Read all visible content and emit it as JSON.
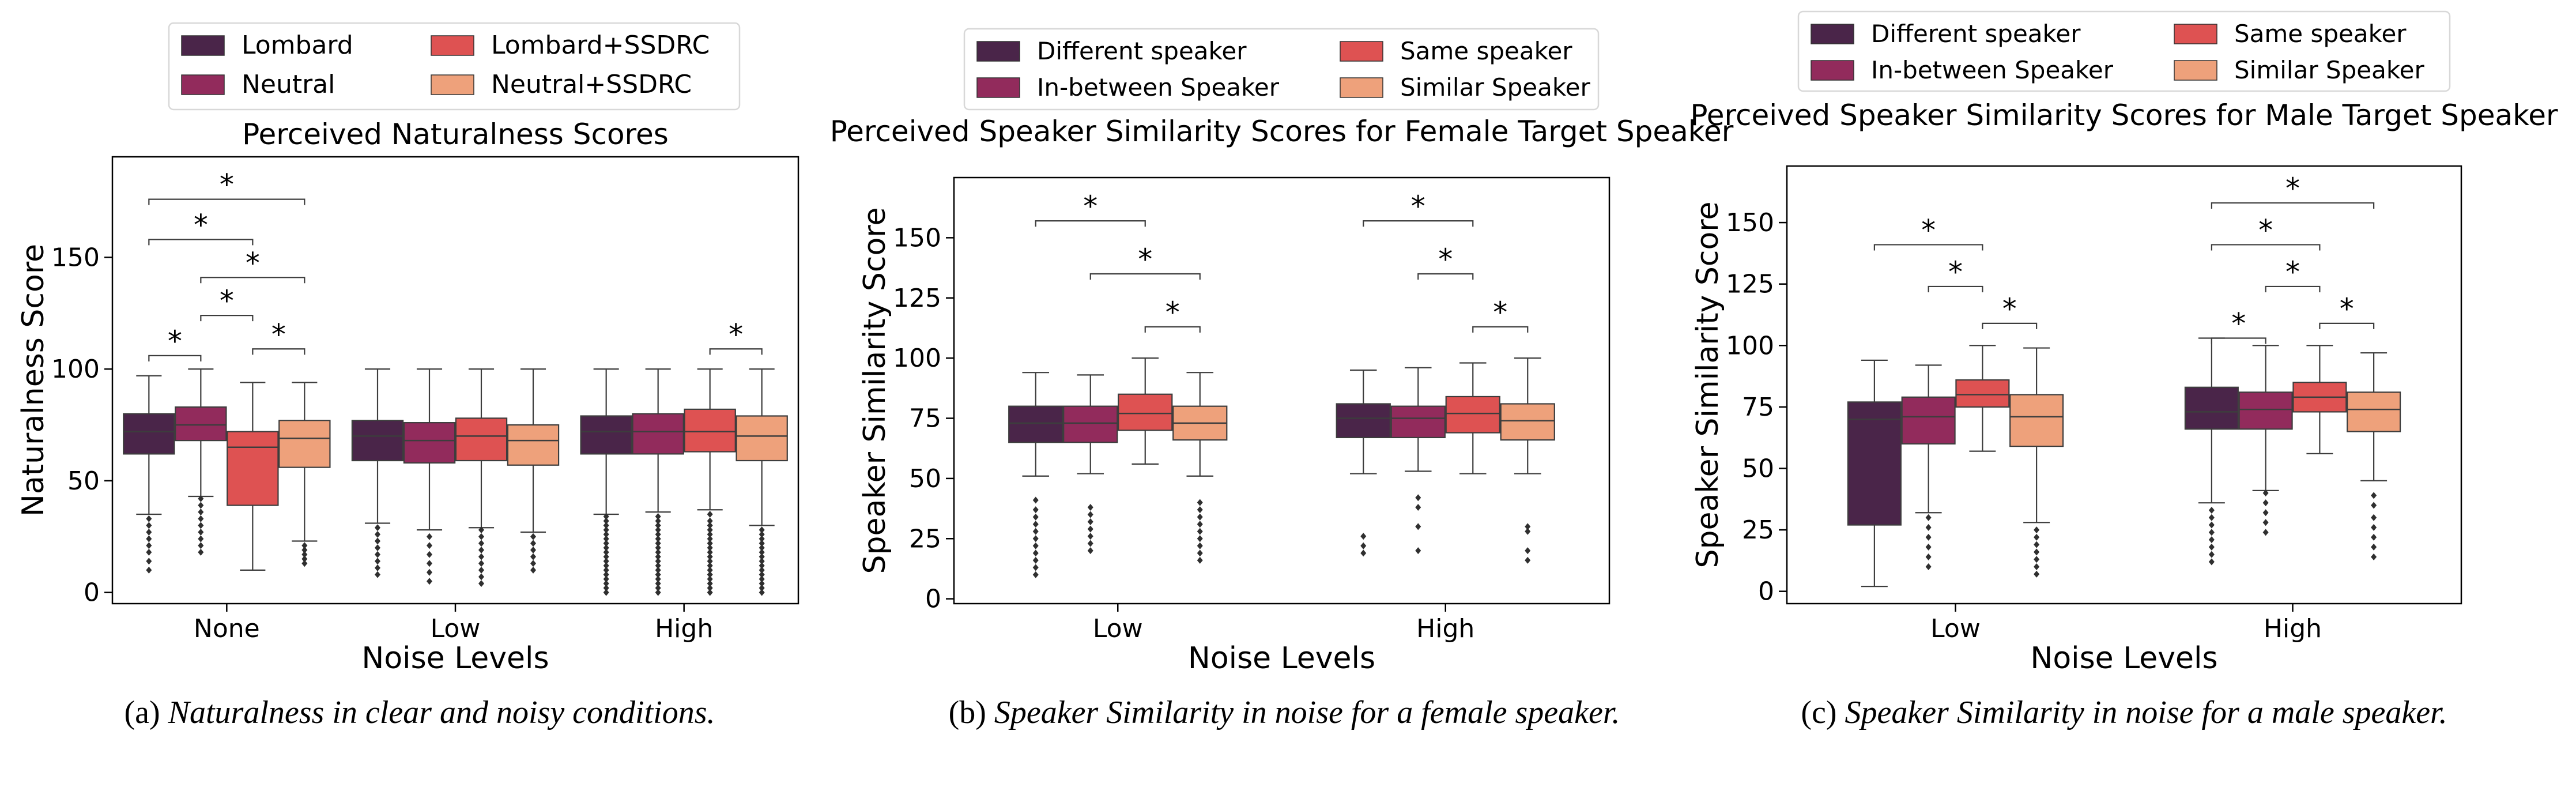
{
  "chart_data": [
    {
      "type": "box",
      "title": "Perceived Naturalness Scores",
      "xlabel": "Noise Levels",
      "ylabel": "Naturalness Score",
      "ylim": [
        -5,
        195
      ],
      "yticks": [
        0,
        50,
        100,
        150
      ],
      "categories": [
        "None",
        "Low",
        "High"
      ],
      "legend": {
        "placement": "top",
        "entries": [
          "Lombard",
          "Neutral",
          "Lombard+SSDRC",
          "Neutral+SSDRC"
        ]
      },
      "colors": [
        "#4a2549",
        "#922b5c",
        "#de5252",
        "#eea17b"
      ],
      "series": [
        {
          "name": "Lombard",
          "boxes": [
            {
              "whislo": 35,
              "q1": 62,
              "med": 72,
              "q3": 80,
              "whishi": 97,
              "fliers": [
                10,
                14,
                18,
                21,
                24,
                27,
                30,
                33
              ]
            },
            {
              "whislo": 31,
              "q1": 59,
              "med": 70,
              "q3": 77,
              "whishi": 100,
              "fliers": [
                8,
                11,
                14,
                17,
                20,
                23,
                26,
                29
              ]
            },
            {
              "whislo": 35,
              "q1": 62,
              "med": 72,
              "q3": 79,
              "whishi": 100,
              "fliers": [
                0,
                2,
                4,
                6,
                8,
                10,
                12,
                14,
                16,
                18,
                20,
                22,
                24,
                26,
                28,
                30,
                32,
                34
              ]
            }
          ]
        },
        {
          "name": "Neutral",
          "boxes": [
            {
              "whislo": 43,
              "q1": 68,
              "med": 75,
              "q3": 83,
              "whishi": 100,
              "fliers": [
                18,
                21,
                24,
                27,
                30,
                33,
                36,
                39,
                42
              ]
            },
            {
              "whislo": 28,
              "q1": 58,
              "med": 68,
              "q3": 76,
              "whishi": 100,
              "fliers": [
                5,
                9,
                13,
                17,
                21,
                25
              ]
            },
            {
              "whislo": 36,
              "q1": 62,
              "med": 72,
              "q3": 80,
              "whishi": 100,
              "fliers": [
                0,
                2,
                4,
                6,
                8,
                10,
                12,
                14,
                16,
                18,
                20,
                22,
                24,
                26,
                28,
                30,
                32,
                34
              ]
            }
          ]
        },
        {
          "name": "Lombard+SSDRC",
          "boxes": [
            {
              "whislo": 10,
              "q1": 39,
              "med": 65,
              "q3": 72,
              "whishi": 94,
              "fliers": []
            },
            {
              "whislo": 29,
              "q1": 59,
              "med": 70,
              "q3": 78,
              "whishi": 100,
              "fliers": [
                4,
                7,
                10,
                13,
                16,
                19,
                22,
                25,
                28
              ]
            },
            {
              "whislo": 37,
              "q1": 63,
              "med": 72,
              "q3": 82,
              "whishi": 100,
              "fliers": [
                0,
                2,
                4,
                6,
                8,
                10,
                12,
                14,
                16,
                18,
                20,
                22,
                24,
                26,
                28,
                30,
                32,
                35
              ]
            }
          ]
        },
        {
          "name": "Neutral+SSDRC",
          "boxes": [
            {
              "whislo": 23,
              "q1": 56,
              "med": 69,
              "q3": 77,
              "whishi": 94,
              "fliers": [
                13,
                15,
                17,
                19,
                21
              ]
            },
            {
              "whislo": 27,
              "q1": 57,
              "med": 68,
              "q3": 75,
              "whishi": 100,
              "fliers": [
                10,
                13,
                16,
                19,
                22,
                25
              ]
            },
            {
              "whislo": 30,
              "q1": 59,
              "med": 70,
              "q3": 79,
              "whishi": 100,
              "fliers": [
                0,
                2,
                4,
                6,
                8,
                10,
                12,
                14,
                16,
                18,
                20,
                22,
                24,
                26,
                28
              ]
            }
          ]
        }
      ],
      "significance": [
        {
          "category": 0,
          "from": 0,
          "to": 1,
          "y": 106,
          "label": "*"
        },
        {
          "category": 0,
          "from": 1,
          "to": 2,
          "y": 124,
          "label": "*"
        },
        {
          "category": 0,
          "from": 2,
          "to": 3,
          "y": 109,
          "label": "*"
        },
        {
          "category": 0,
          "from": 1,
          "to": 3,
          "y": 141,
          "label": "*"
        },
        {
          "category": 0,
          "from": 0,
          "to": 2,
          "y": 158,
          "label": "*"
        },
        {
          "category": 0,
          "from": 0,
          "to": 3,
          "y": 176,
          "label": "*"
        },
        {
          "category": 2,
          "from": 2,
          "to": 3,
          "y": 109,
          "label": "*"
        }
      ]
    },
    {
      "type": "box",
      "title": "Perceived Speaker Similarity Scores for Female Target Speaker",
      "xlabel": "Noise Levels",
      "ylabel": "Speaker Similarity Score",
      "ylim": [
        -2,
        175
      ],
      "yticks": [
        0,
        25,
        50,
        75,
        100,
        125,
        150
      ],
      "categories": [
        "Low",
        "High"
      ],
      "legend": {
        "placement": "top",
        "entries": [
          "Different speaker",
          "In-between Speaker",
          "Same speaker",
          "Similar Speaker"
        ]
      },
      "colors": [
        "#4a2549",
        "#922b5c",
        "#de5252",
        "#eea17b"
      ],
      "series": [
        {
          "name": "Different speaker",
          "boxes": [
            {
              "whislo": 51,
              "q1": 65,
              "med": 73,
              "q3": 80,
              "whishi": 94,
              "fliers": [
                10,
                13,
                16,
                19,
                22,
                25,
                28,
                31,
                34,
                37,
                41
              ]
            },
            {
              "whislo": 52,
              "q1": 67,
              "med": 75,
              "q3": 81,
              "whishi": 95,
              "fliers": [
                19,
                22,
                26
              ]
            }
          ]
        },
        {
          "name": "In-between Speaker",
          "boxes": [
            {
              "whislo": 52,
              "q1": 65,
              "med": 73,
              "q3": 80,
              "whishi": 93,
              "fliers": [
                20,
                23,
                26,
                29,
                32,
                35,
                38
              ]
            },
            {
              "whislo": 53,
              "q1": 67,
              "med": 75,
              "q3": 80,
              "whishi": 96,
              "fliers": [
                20,
                30,
                38,
                42
              ]
            }
          ]
        },
        {
          "name": "Same speaker",
          "boxes": [
            {
              "whislo": 56,
              "q1": 70,
              "med": 77,
              "q3": 85,
              "whishi": 100,
              "fliers": []
            },
            {
              "whislo": 52,
              "q1": 69,
              "med": 77,
              "q3": 84,
              "whishi": 98,
              "fliers": []
            }
          ]
        },
        {
          "name": "Similar Speaker",
          "boxes": [
            {
              "whislo": 51,
              "q1": 66,
              "med": 73,
              "q3": 80,
              "whishi": 94,
              "fliers": [
                16,
                19,
                22,
                25,
                28,
                31,
                34,
                37,
                40
              ]
            },
            {
              "whislo": 52,
              "q1": 66,
              "med": 74,
              "q3": 81,
              "whishi": 100,
              "fliers": [
                16,
                20,
                28,
                30
              ]
            }
          ]
        }
      ],
      "significance": [
        {
          "category": 0,
          "from": 2,
          "to": 3,
          "y": 113,
          "label": "*"
        },
        {
          "category": 0,
          "from": 1,
          "to": 3,
          "y": 135,
          "label": "*"
        },
        {
          "category": 0,
          "from": 0,
          "to": 2,
          "y": 157,
          "label": "*"
        },
        {
          "category": 1,
          "from": 2,
          "to": 3,
          "y": 113,
          "label": "*"
        },
        {
          "category": 1,
          "from": 1,
          "to": 2,
          "y": 135,
          "label": "*"
        },
        {
          "category": 1,
          "from": 0,
          "to": 2,
          "y": 157,
          "label": "*"
        }
      ]
    },
    {
      "type": "box",
      "title": "Perceived Speaker Similarity Scores for Male Target Speaker",
      "xlabel": "Noise Levels",
      "ylabel": "Speaker Similarity Score",
      "ylim": [
        -5,
        173
      ],
      "yticks": [
        0,
        25,
        50,
        75,
        100,
        125,
        150
      ],
      "categories": [
        "Low",
        "High"
      ],
      "legend": {
        "placement": "top",
        "entries": [
          "Different speaker",
          "In-between Speaker",
          "Same speaker",
          "Similar Speaker"
        ]
      },
      "colors": [
        "#4a2549",
        "#922b5c",
        "#de5252",
        "#eea17b"
      ],
      "series": [
        {
          "name": "Different speaker",
          "boxes": [
            {
              "whislo": 2,
              "q1": 27,
              "med": 70,
              "q3": 77,
              "whishi": 94,
              "fliers": []
            },
            {
              "whislo": 36,
              "q1": 66,
              "med": 73,
              "q3": 83,
              "whishi": 103,
              "fliers": [
                12,
                15,
                18,
                21,
                24,
                27,
                30,
                33
              ]
            }
          ]
        },
        {
          "name": "In-between Speaker",
          "boxes": [
            {
              "whislo": 32,
              "q1": 60,
              "med": 71,
              "q3": 79,
              "whishi": 92,
              "fliers": [
                10,
                14,
                18,
                22,
                26,
                30
              ]
            },
            {
              "whislo": 41,
              "q1": 66,
              "med": 74,
              "q3": 81,
              "whishi": 100,
              "fliers": [
                24,
                28,
                32,
                36,
                40
              ]
            }
          ]
        },
        {
          "name": "Same speaker",
          "boxes": [
            {
              "whislo": 57,
              "q1": 75,
              "med": 80,
              "q3": 86,
              "whishi": 100,
              "fliers": []
            },
            {
              "whislo": 56,
              "q1": 73,
              "med": 79,
              "q3": 85,
              "whishi": 100,
              "fliers": []
            }
          ]
        },
        {
          "name": "Similar Speaker",
          "boxes": [
            {
              "whislo": 28,
              "q1": 59,
              "med": 71,
              "q3": 80,
              "whishi": 99,
              "fliers": [
                7,
                10,
                13,
                16,
                19,
                22,
                25
              ]
            },
            {
              "whislo": 45,
              "q1": 65,
              "med": 74,
              "q3": 81,
              "whishi": 97,
              "fliers": [
                14,
                18,
                22,
                26,
                30,
                35,
                39
              ]
            }
          ]
        }
      ],
      "significance": [
        {
          "category": 0,
          "from": 2,
          "to": 3,
          "y": 109,
          "label": "*"
        },
        {
          "category": 0,
          "from": 1,
          "to": 2,
          "y": 124,
          "label": "*"
        },
        {
          "category": 0,
          "from": 0,
          "to": 2,
          "y": 141,
          "label": "*"
        },
        {
          "category": 1,
          "from": 0,
          "to": 1,
          "y": 103,
          "label": "*"
        },
        {
          "category": 1,
          "from": 2,
          "to": 3,
          "y": 109,
          "label": "*"
        },
        {
          "category": 1,
          "from": 1,
          "to": 2,
          "y": 124,
          "label": "*"
        },
        {
          "category": 1,
          "from": 0,
          "to": 2,
          "y": 141,
          "label": "*"
        },
        {
          "category": 1,
          "from": 0,
          "to": 3,
          "y": 158,
          "label": "*"
        }
      ]
    }
  ],
  "captions": [
    {
      "prefix": "(a) ",
      "text": "Naturalness in clear and noisy conditions."
    },
    {
      "prefix": "(b) ",
      "text": "Speaker Similarity in noise for a female speaker."
    },
    {
      "prefix": "(c) ",
      "text": "Speaker Similarity in noise for a male speaker."
    }
  ]
}
